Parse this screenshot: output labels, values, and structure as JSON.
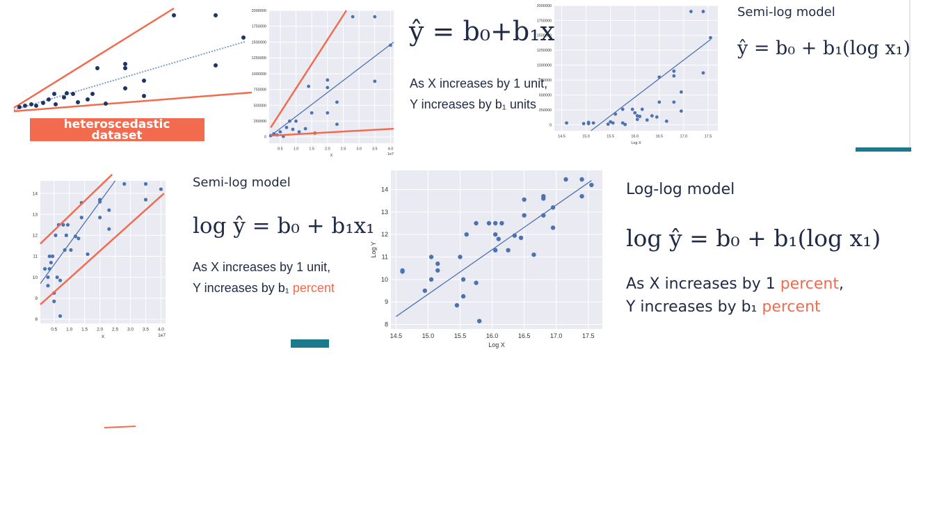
{
  "panels": {
    "heteroscedastic": {
      "label": [
        "heteroscedastic",
        "dataset"
      ]
    },
    "linear": {
      "formula": "ŷ = b₀+b₁x₁",
      "lines": [
        "As X increases by 1 unit,",
        "Y increases by b₁ units"
      ]
    },
    "semilog_top": {
      "title": "Semi-log model",
      "formula": "ŷ = b₀ + b₁(log x₁)"
    },
    "semilog": {
      "title": "Semi-log model",
      "formula": "log ŷ = b₀ + b₁x₁",
      "line1": "As X increases by 1 unit,",
      "line2": "Y increases by b₁ ",
      "line2_highlight": "percent"
    },
    "loglog": {
      "title": "Log-log model",
      "formula": "log ŷ = b₀ + b₁(log x₁)",
      "line1": "As X increases by 1 ",
      "line1_highlight": "percent",
      "line1_end": ",",
      "line2": "Y increases by b₁ ",
      "line2_highlight": "percent"
    }
  },
  "chart_data": [
    {
      "type": "scatter",
      "x_label": "X",
      "x_offset_label": "1e7",
      "color": "#4c72b0",
      "xlim": [
        0.15,
        4.1
      ],
      "ylim": [
        -100000,
        2000000
      ],
      "xticks": [
        0.5,
        {
          "value": 1,
          "label": "1.0"
        },
        1.5,
        {
          "value": 2,
          "label": "2.0"
        },
        2.5,
        {
          "value": 3,
          "label": "3.0"
        },
        3.5,
        {
          "value": 4,
          "label": "4.0"
        }
      ],
      "yticks": [
        0,
        250000,
        500000,
        750000,
        1000000,
        1250000,
        1500000,
        1750000,
        2000000
      ],
      "x": [
        0.2,
        0.3,
        0.4,
        0.5,
        0.6,
        0.7,
        0.8,
        0.9,
        1.0,
        1.1,
        1.3,
        1.4,
        1.5,
        1.6,
        2.0,
        2.0,
        2.0,
        2.3,
        2.3,
        2.8,
        3.5,
        3.5,
        4.0
      ],
      "y": [
        20000,
        50000,
        30000,
        80000,
        10000,
        150000,
        250000,
        120000,
        250000,
        80000,
        130000,
        800000,
        380000,
        60000,
        900000,
        780000,
        380000,
        550000,
        200000,
        1900000,
        1900000,
        880000,
        1450000
      ],
      "lines": [
        {
          "color": "#4c72b0",
          "x": [
            0.15,
            4.1
          ],
          "y": [
            0,
            1500000
          ]
        },
        {
          "color": "#f26b4f",
          "x": [
            0.2,
            2.6
          ],
          "y": [
            150000,
            2000000
          ]
        },
        {
          "color": "#f26b4f",
          "x": [
            0.2,
            4.1
          ],
          "y": [
            20000,
            130000
          ]
        }
      ]
    },
    {
      "type": "scatter",
      "x_label": "Log X",
      "color": "#4c72b0",
      "xlim": [
        14.35,
        17.7
      ],
      "ylim": [
        -100000,
        2000000
      ],
      "xticks": [
        14.5,
        {
          "value": 15,
          "label": "15.0"
        },
        15.5,
        {
          "value": 16,
          "label": "16.0"
        },
        16.5,
        {
          "value": 17,
          "label": "17.0"
        },
        17.5
      ],
      "yticks": [
        0,
        250000,
        500000,
        750000,
        1000000,
        1250000,
        1500000,
        1750000,
        2000000
      ],
      "x": [
        14.6,
        14.95,
        15.05,
        15.05,
        15.15,
        15.45,
        15.5,
        15.55,
        15.6,
        15.75,
        15.75,
        15.8,
        15.95,
        16.0,
        16.05,
        16.05,
        16.1,
        16.15,
        16.25,
        16.35,
        16.45,
        16.5,
        16.5,
        16.65,
        16.8,
        16.8,
        16.8,
        16.95,
        16.95,
        17.15,
        17.4,
        17.4,
        17.55
      ],
      "y": [
        30000,
        20000,
        40000,
        20000,
        30000,
        10000,
        50000,
        30000,
        180000,
        260000,
        30000,
        5000,
        260000,
        200000,
        150000,
        90000,
        140000,
        260000,
        80000,
        150000,
        130000,
        800000,
        380000,
        60000,
        900000,
        820000,
        380000,
        550000,
        230000,
        1900000,
        1900000,
        870000,
        1460000
      ],
      "lines": [
        {
          "color": "#4c72b0",
          "x": [
            15.1,
            17.55
          ],
          "y": [
            -100000,
            1430000
          ]
        }
      ]
    },
    {
      "type": "scatter",
      "x_label": "X",
      "x_offset_label": "1e7",
      "color": "#4c72b0",
      "xlim": [
        0.05,
        4.15
      ],
      "ylim": [
        7.8,
        14.6
      ],
      "xticks": [
        0.5,
        {
          "value": 1,
          "label": "1.0"
        },
        1.5,
        {
          "value": 2,
          "label": "2.0"
        },
        2.5,
        {
          "value": 3,
          "label": "3.0"
        },
        3.5,
        {
          "value": 4,
          "label": "4.0"
        }
      ],
      "yticks": [
        8,
        9,
        10,
        11,
        12,
        13,
        14
      ],
      "x": [
        0.2,
        0.3,
        0.3,
        0.35,
        0.35,
        0.4,
        0.45,
        0.5,
        0.5,
        0.55,
        0.6,
        0.65,
        0.7,
        0.7,
        0.8,
        0.85,
        0.9,
        0.95,
        1.05,
        1.2,
        1.3,
        1.4,
        1.4,
        1.6,
        2.0,
        2.0,
        2.0,
        2.3,
        2.3,
        2.8,
        3.5,
        3.5,
        4.0
      ],
      "y": [
        10.4,
        10.0,
        9.6,
        11.0,
        10.4,
        10.7,
        11.0,
        8.85,
        9.25,
        12.0,
        10.0,
        12.5,
        9.85,
        8.15,
        12.5,
        11.3,
        12.0,
        12.5,
        11.3,
        11.95,
        11.85,
        13.55,
        12.85,
        11.1,
        13.7,
        13.6,
        12.85,
        13.2,
        12.3,
        14.45,
        14.45,
        13.7,
        14.2
      ],
      "lines": [
        {
          "color": "#4c72b0",
          "x": [
            0.05,
            2.5
          ],
          "y": [
            9.7,
            14.6
          ]
        },
        {
          "color": "#f26b4f",
          "x": [
            0.05,
            2.4
          ],
          "y": [
            11.6,
            14.9
          ]
        },
        {
          "color": "#f26b4f",
          "x": [
            0.05,
            4.1
          ],
          "y": [
            8.7,
            14.0
          ]
        }
      ]
    },
    {
      "type": "scatter",
      "x_label": "Log X",
      "y_label": "Log Y",
      "color": "#4c72b0",
      "xlim": [
        14.42,
        17.72
      ],
      "ylim": [
        7.8,
        14.85
      ],
      "xticks": [
        14.5,
        {
          "value": 15,
          "label": "15.0"
        },
        15.5,
        {
          "value": 16,
          "label": "16.0"
        },
        16.5,
        {
          "value": 17,
          "label": "17.0"
        },
        17.5
      ],
      "yticks": [
        8,
        9,
        10,
        11,
        12,
        13,
        14
      ],
      "x": [
        14.6,
        14.6,
        14.95,
        15.05,
        15.05,
        15.15,
        15.15,
        15.45,
        15.5,
        15.55,
        15.55,
        15.6,
        15.75,
        15.75,
        15.8,
        15.95,
        16.05,
        16.05,
        16.05,
        16.1,
        16.15,
        16.25,
        16.35,
        16.45,
        16.5,
        16.5,
        16.65,
        16.8,
        16.8,
        16.8,
        16.95,
        16.95,
        17.15,
        17.4,
        17.4,
        17.55
      ],
      "y": [
        10.4,
        10.35,
        9.5,
        11.0,
        10.0,
        10.7,
        10.4,
        8.85,
        11.0,
        10.0,
        9.25,
        12.0,
        12.5,
        9.85,
        8.15,
        12.5,
        12.5,
        12.0,
        11.3,
        11.8,
        12.5,
        11.3,
        11.95,
        11.85,
        13.55,
        12.85,
        11.1,
        13.7,
        13.6,
        12.85,
        13.2,
        12.3,
        14.45,
        14.45,
        13.7,
        14.2
      ],
      "lines": [
        {
          "color": "#4c72b0",
          "x": [
            14.5,
            17.55
          ],
          "y": [
            8.35,
            14.4
          ]
        }
      ]
    }
  ]
}
